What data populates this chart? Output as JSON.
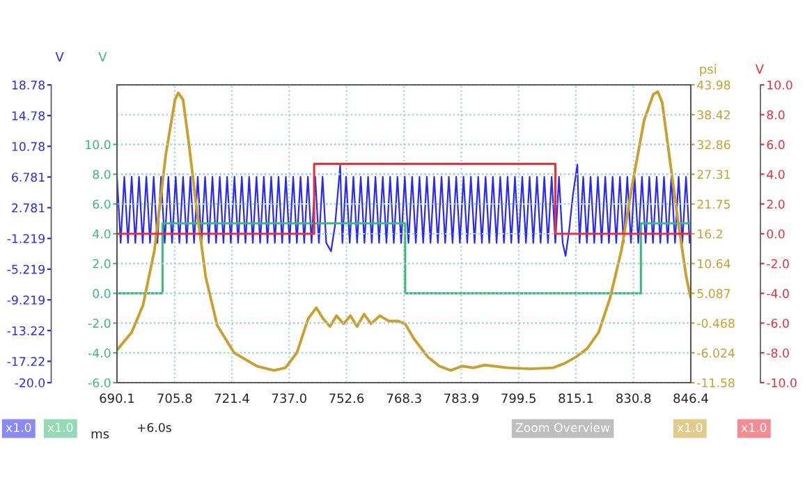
{
  "chart_data": [
    {
      "type": "line",
      "xlabel": "ms",
      "ylabel": "V",
      "y2label": "V",
      "annotations": [
        "+6.0s",
        "x1.0",
        "x1.0"
      ],
      "xlim": [
        690.1,
        846.4
      ],
      "xticks": [
        690.1,
        705.8,
        721.4,
        {
          "value": 737.0,
          "label": "737.0"
        },
        752.6,
        768.3,
        783.9,
        799.5,
        815.1,
        830.8,
        846.4
      ],
      "ylim": [
        -20,
        18.78
      ],
      "yticks": [
        18.78,
        14.78,
        10.78,
        6.781,
        2.781,
        -1.219,
        -5.219,
        -9.219,
        -13.22,
        -17.22,
        {
          "value": -20,
          "label": "-20.0"
        }
      ],
      "y2lim": [
        -6,
        14
      ],
      "y2ticks": [
        {
          "value": 10,
          "label": "10.0"
        },
        {
          "value": 8,
          "label": "8.0"
        },
        {
          "value": 6,
          "label": "6.0"
        },
        {
          "value": 4,
          "label": "4.0"
        },
        {
          "value": 2,
          "label": "2.0"
        },
        {
          "value": 0,
          "label": "0.0"
        },
        {
          "value": -2,
          "label": "-2.0"
        },
        {
          "value": -4,
          "label": "-4.0"
        },
        {
          "value": -6,
          "label": "-6.0"
        }
      ],
      "grid": true,
      "series": [
        {
          "color": "#2a2af0",
          "x": [
            690.1,
            691.1,
            692.1,
            693.1,
            694.1,
            695.1,
            696.1,
            697.1,
            698.1,
            699.1,
            700.1,
            701.1,
            702.1,
            703.1,
            704.1,
            705.1,
            706.1,
            707.1,
            708.1,
            709.1,
            710.1,
            711.1,
            712.1,
            713.1,
            714.1,
            715.1,
            716.1,
            717.1,
            718.1,
            719.1,
            720.1,
            721.1,
            722.1,
            723.1,
            724.1,
            725.1,
            726.1,
            727.1,
            728.1,
            729.1,
            730.1,
            731.1,
            732.1,
            733.1,
            734.1,
            735.1,
            736.1,
            737.1,
            738.1,
            739.1,
            740.1,
            741.1,
            742.1,
            743.1,
            744.1,
            745.1,
            746.1,
            747.1,
            748.4,
            749.5,
            750.4,
            750.9,
            751.5,
            752.5,
            753.5,
            754.5,
            755.5,
            756.5,
            757.5,
            758.5,
            759.5,
            760.5,
            761.5,
            762.5,
            763.5,
            764.5,
            765.5,
            766.5,
            767.5,
            768.5,
            769.5,
            770.5,
            771.5,
            772.5,
            773.5,
            774.5,
            775.5,
            776.5,
            777.5,
            778.5,
            779.5,
            780.5,
            781.5,
            782.5,
            783.5,
            784.5,
            785.5,
            786.5,
            787.5,
            788.5,
            789.5,
            790.5,
            791.5,
            792.5,
            793.5,
            794.5,
            795.5,
            796.5,
            797.5,
            798.5,
            799.5,
            800.5,
            801.5,
            802.5,
            803.5,
            804.5,
            805.5,
            806.5,
            807.5,
            808.5,
            809.5,
            810.5,
            811.5,
            812.3,
            813.3,
            814.3,
            815.5,
            816.1,
            817.1,
            818.1,
            819.1,
            820.1,
            821.1,
            822.1,
            823.1,
            824.1,
            825.1,
            826.1,
            827.1,
            828.1,
            829.1,
            830.1,
            831.1,
            832.1,
            833.1,
            834.1,
            835.1,
            836.1,
            837.1,
            838.1,
            839.1,
            840.1,
            841.1,
            842.1,
            843.1,
            844.1,
            845.1,
            846.1
          ],
          "values": [
            6.8,
            -1.8,
            6.8,
            -1.8,
            6.8,
            -1.8,
            6.8,
            -1.8,
            6.8,
            -1.8,
            6.8,
            -1.8,
            6.8,
            -1.8,
            6.8,
            -1.8,
            6.8,
            -1.8,
            6.8,
            -1.8,
            6.8,
            -1.8,
            6.8,
            -1.8,
            6.8,
            -1.8,
            6.8,
            -1.8,
            6.8,
            -1.8,
            6.8,
            -1.8,
            6.8,
            -1.8,
            6.8,
            -1.8,
            6.8,
            -1.8,
            6.8,
            -1.8,
            6.8,
            -1.8,
            6.8,
            -1.8,
            6.8,
            -1.8,
            6.8,
            -1.8,
            6.8,
            -1.8,
            6.8,
            -1.8,
            6.8,
            -1.8,
            6.8,
            -1.8,
            6.8,
            -1.8,
            -2.9,
            0.5,
            5.5,
            8.3,
            -1.8,
            6.8,
            -1.8,
            6.8,
            -1.8,
            6.8,
            -1.8,
            6.8,
            -1.8,
            6.8,
            -1.8,
            6.8,
            -1.8,
            6.8,
            -1.8,
            6.8,
            -1.8,
            6.8,
            -1.8,
            6.8,
            -1.8,
            6.8,
            -1.8,
            6.8,
            -1.8,
            6.8,
            -1.8,
            6.8,
            -1.8,
            6.8,
            -1.8,
            6.8,
            -1.8,
            6.8,
            -1.8,
            6.8,
            -1.8,
            6.8,
            -1.8,
            6.8,
            -1.8,
            6.8,
            -1.8,
            6.8,
            -1.8,
            6.8,
            -1.8,
            6.8,
            -1.8,
            6.8,
            -1.8,
            6.8,
            -1.8,
            6.8,
            -1.8,
            6.8,
            -1.8,
            6.8,
            -1.8,
            6.8,
            -1.8,
            -3.5,
            0.0,
            4.5,
            8.4,
            -1.8,
            6.8,
            -1.8,
            6.8,
            -1.8,
            6.8,
            -1.8,
            6.8,
            -1.8,
            6.8,
            -1.8,
            6.8,
            -1.8,
            6.8,
            -1.8,
            6.8,
            -1.8,
            6.8,
            -1.8,
            6.8,
            -1.8,
            6.8,
            -1.8,
            6.8,
            -1.8,
            6.8,
            -1.8,
            6.8,
            -1.8,
            6.8,
            -1.8
          ]
        },
        {
          "type": "step",
          "axis": "y2",
          "color": "#3cb878",
          "x": [
            690.1,
            702.5,
            768.6,
            832.8,
            846.4
          ],
          "values": [
            0,
            4.7,
            0,
            4.7,
            4.7
          ]
        }
      ]
    },
    {
      "type": "line",
      "ylabel": "psi",
      "y2label": "V",
      "annotations": [
        "Zoom Overview",
        "x1.0",
        "x1.0"
      ],
      "xlim": [
        690.1,
        846.4
      ],
      "ylim": [
        -11.58,
        43.98
      ],
      "yticks": [
        43.98,
        38.42,
        32.86,
        27.31,
        21.75,
        16.2,
        10.64,
        5.087,
        -0.468,
        -6.024,
        -11.58
      ],
      "y2lim": [
        -10,
        10
      ],
      "y2ticks": [
        {
          "value": 10,
          "label": "10.0"
        },
        {
          "value": 8,
          "label": "8.0"
        },
        {
          "value": 6,
          "label": "6.0"
        },
        {
          "value": 4,
          "label": "4.0"
        },
        {
          "value": 2,
          "label": "2.0"
        },
        {
          "value": 0,
          "label": "0.0"
        },
        {
          "value": -2,
          "label": "-2.0"
        },
        {
          "value": -4,
          "label": "-4.0"
        },
        {
          "value": -6,
          "label": "-6.0"
        },
        {
          "value": -8,
          "label": "-8.0"
        },
        {
          "value": -10,
          "label": "-10.0"
        }
      ],
      "grid": "y",
      "tick_labels": "y",
      "series": [
        {
          "type": "step",
          "axis": "y2",
          "color": "#e8303a",
          "x": [
            690.1,
            743.8,
            809.5,
            846.4
          ],
          "values": [
            0,
            4.7,
            0,
            0
          ]
        },
        {
          "color": "#c9a02c",
          "x": [
            690.1,
            694.1,
            697.2,
            700.3,
            703.4,
            705.9,
            706.8,
            708.1,
            709.6,
            711.8,
            714.3,
            717.4,
            722.0,
            728.2,
            732.9,
            736.0,
            739.1,
            742.2,
            744.4,
            746.2,
            748.1,
            749.9,
            751.8,
            753.7,
            755.5,
            757.4,
            759.3,
            761.7,
            764.2,
            766.7,
            768.6,
            771.0,
            774.8,
            777.9,
            781.0,
            784.1,
            787.2,
            790.3,
            796.5,
            802.7,
            808.9,
            812.0,
            815.1,
            818.2,
            821.3,
            824.4,
            827.5,
            830.6,
            833.7,
            836.2,
            837.4,
            838.6,
            840.5,
            843.0,
            845.2,
            846.4
          ],
          "values": [
            -5.5,
            -2.2,
            2.9,
            13.1,
            31.0,
            41.2,
            42.5,
            41.2,
            33.5,
            20.8,
            8.0,
            -0.9,
            -6.0,
            -8.5,
            -9.3,
            -8.8,
            -6.0,
            0.4,
            2.4,
            0.4,
            -1.1,
            0.9,
            -0.6,
            0.9,
            -1.1,
            1.2,
            -0.6,
            0.9,
            -0.1,
            -0.1,
            -0.6,
            -3.4,
            -6.8,
            -8.5,
            -9.3,
            -8.5,
            -8.8,
            -8.3,
            -8.8,
            -9.0,
            -8.8,
            -8.0,
            -6.8,
            -5.2,
            -2.2,
            4.2,
            13.1,
            25.9,
            37.4,
            42.2,
            42.7,
            40.7,
            31.0,
            18.2,
            8.0,
            4.2
          ]
        }
      ]
    }
  ]
}
